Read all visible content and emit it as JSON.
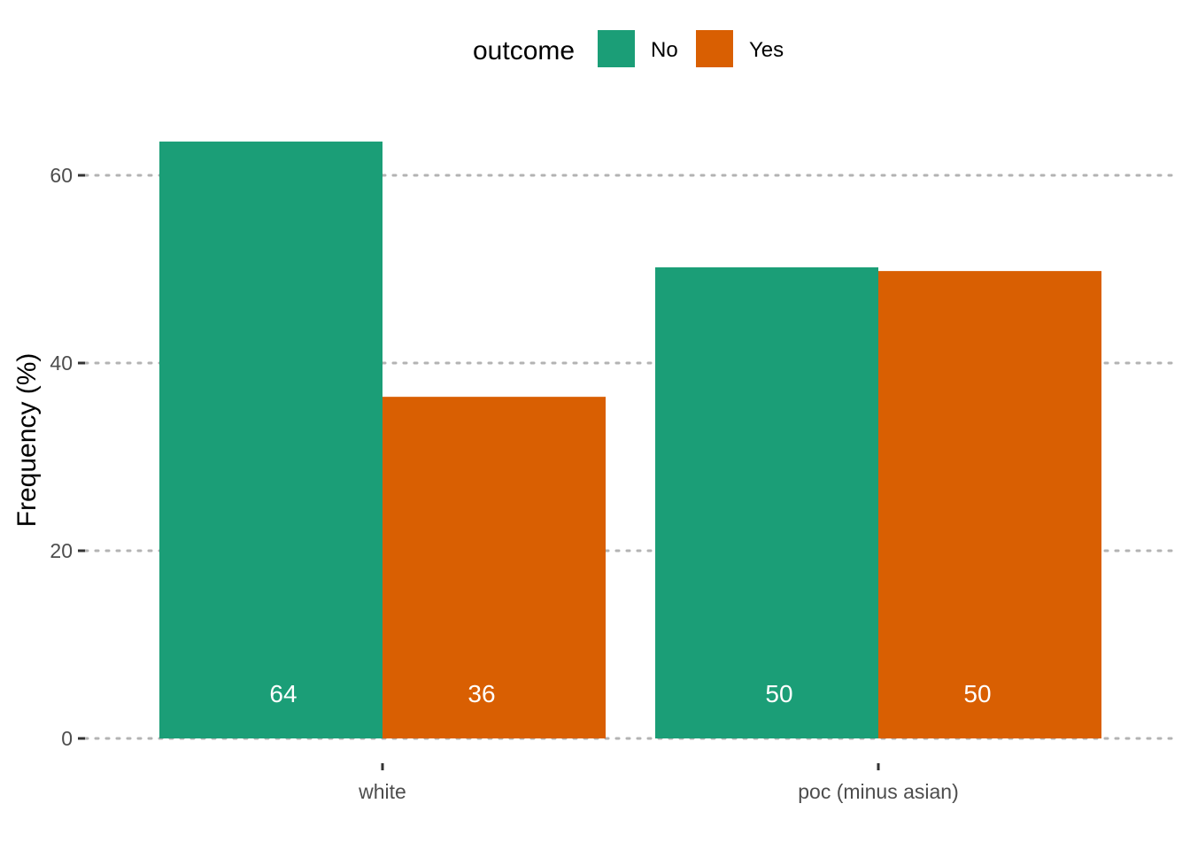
{
  "chart_data": {
    "type": "bar",
    "categories": [
      "white",
      "poc (minus asian)"
    ],
    "series": [
      {
        "name": "No",
        "color": "#1B9E77",
        "values": [
          63.6,
          50.2
        ]
      },
      {
        "name": "Yes",
        "color": "#D95F02",
        "values": [
          36.4,
          49.8
        ]
      }
    ],
    "data_labels": [
      [
        "64",
        "50"
      ],
      [
        "36",
        "50"
      ]
    ],
    "legend": {
      "title": "outcome",
      "position": "top"
    },
    "ylabel": "Frequency (%)",
    "xlabel": "",
    "ylim": [
      0,
      66
    ],
    "yticks": [
      0,
      20,
      40,
      60
    ],
    "grid": "horizontal-dotted"
  }
}
